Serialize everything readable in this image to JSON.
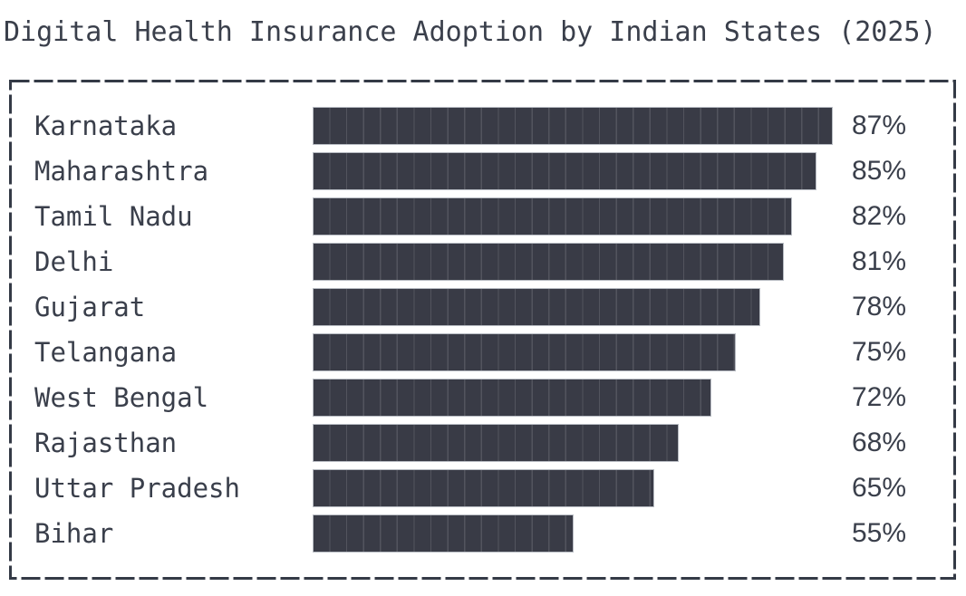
{
  "chart_data": {
    "type": "bar",
    "orientation": "horizontal",
    "title": "Digital Health Insurance Adoption by Indian States (2025)",
    "categories": [
      "Karnataka",
      "Maharashtra",
      "Tamil Nadu",
      "Delhi",
      "Gujarat",
      "Telangana",
      "West Bengal",
      "Rajasthan",
      "Uttar Pradesh",
      "Bihar"
    ],
    "values": [
      87,
      85,
      82,
      81,
      78,
      75,
      72,
      68,
      65,
      55
    ],
    "value_labels": [
      "87%",
      "85%",
      "82%",
      "81%",
      "78%",
      "75%",
      "72%",
      "68%",
      "65%",
      "55%"
    ],
    "value_suffix": "%",
    "xlim": [
      22.8,
      87
    ],
    "grid": false,
    "legend": false,
    "colors": {
      "bar_fill": "#393b46",
      "bar_outline": "#b7bbc2",
      "text": "#3a3f4b",
      "frame": "#343a46",
      "background": "#ffffff"
    }
  }
}
